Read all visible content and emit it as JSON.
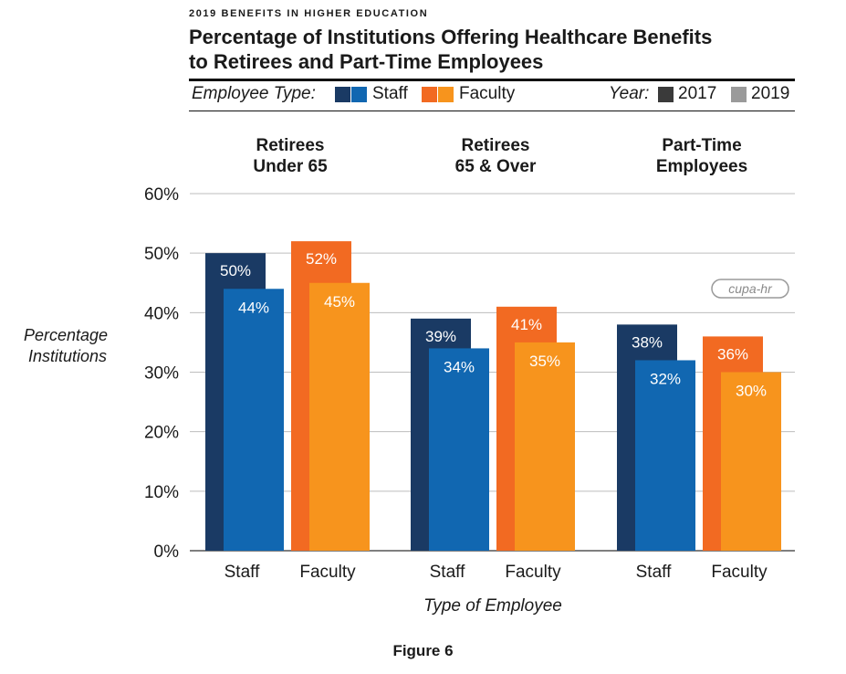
{
  "header": {
    "kicker": "2019 BENEFITS IN HIGHER EDUCATION",
    "title_line1": "Percentage of Institutions Offering Healthcare Benefits",
    "title_line2": "to Retirees and Part-Time Employees"
  },
  "legend": {
    "employee_type_label": "Employee Type:",
    "staff_label": "Staff",
    "faculty_label": "Faculty",
    "year_label": "Year:",
    "year_2017": "2017",
    "year_2019": "2019"
  },
  "colors": {
    "staff_2017": "#1a3a64",
    "staff_2019": "#1167b1",
    "faculty_2017": "#f26a22",
    "faculty_2019": "#f7941d",
    "legend_2017": "#3a3a3a",
    "legend_2019": "#9a9a9a"
  },
  "logo": {
    "text": "cupa-hr"
  },
  "figure_caption": "Figure 6",
  "chart_data": {
    "type": "bar",
    "ylabel_line1": "Percentage",
    "ylabel_line2": "Institutions",
    "xlabel": "Type of Employee",
    "ylim": [
      0,
      60
    ],
    "yticks": [
      0,
      10,
      20,
      30,
      40,
      50,
      60
    ],
    "tick_suffix": "%",
    "grid": true,
    "groups": [
      {
        "title_line1": "Retirees",
        "title_line2": "Under 65",
        "bars": [
          {
            "category": "Staff",
            "values": {
              "2017": 50,
              "2019": 44
            }
          },
          {
            "category": "Faculty",
            "values": {
              "2017": 52,
              "2019": 45
            }
          }
        ]
      },
      {
        "title_line1": "Retirees",
        "title_line2": "65 & Over",
        "bars": [
          {
            "category": "Staff",
            "values": {
              "2017": 39,
              "2019": 34
            }
          },
          {
            "category": "Faculty",
            "values": {
              "2017": 41,
              "2019": 35
            }
          }
        ]
      },
      {
        "title_line1": "Part-Time",
        "title_line2": "Employees",
        "bars": [
          {
            "category": "Staff",
            "values": {
              "2017": 38,
              "2019": 32
            }
          },
          {
            "category": "Faculty",
            "values": {
              "2017": 36,
              "2019": 30
            }
          }
        ]
      }
    ]
  }
}
